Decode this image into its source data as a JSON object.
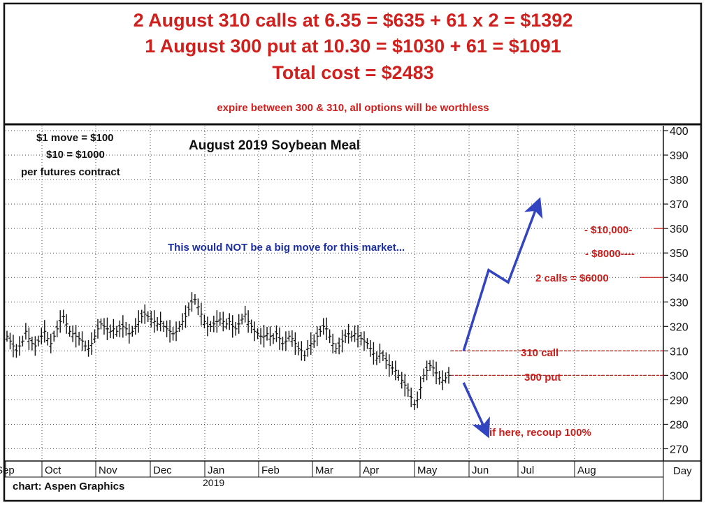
{
  "header": {
    "line1": "2 August 310 calls at 6.35 = $635 + 61 x 2 = $1392",
    "line2": "1 August 300 put at 10.30 = $1030 + 61 = $1091",
    "line3": "Total cost = $2483",
    "line4": "expire between 300 & 310, all options will be worthless"
  },
  "notes": {
    "move1": "$1 move = $100",
    "move2": "$10 = $1000",
    "move3": "per futures contract",
    "big_move": "This would NOT be a big move for this market...",
    "credit": "chart: Aspen Graphics",
    "year": "2019",
    "day": "Day"
  },
  "annotations": {
    "a10000": "$10,000",
    "a8000": "$8000",
    "a6000": "2 calls = $6000",
    "call310": "310 call",
    "put300": "300 put",
    "recoup": "if here, recoup 100%"
  },
  "colors": {
    "title_red": "#d0201d",
    "annotation_red": "#c8201d",
    "arrow_blue": "#3344c0",
    "text_blue": "#1a2ea0",
    "price_bars": "#111111"
  },
  "chart_data": {
    "type": "line",
    "title": "August 2019 Soybean Meal",
    "xlabel": "",
    "ylabel": "",
    "ylim": [
      265,
      402
    ],
    "y_ticks": [
      270,
      280,
      290,
      300,
      310,
      320,
      330,
      340,
      350,
      360,
      370,
      380,
      390,
      400
    ],
    "x_ticks": [
      "Sep",
      "Oct",
      "Nov",
      "Dec",
      "Jan",
      "Feb",
      "Mar",
      "Apr",
      "May",
      "Jun",
      "Jul",
      "Aug"
    ],
    "grid": true,
    "series": [
      {
        "values": [
          316,
          314,
          312,
          310,
          312,
          314,
          318,
          315,
          313,
          312,
          314,
          316,
          318,
          315,
          313,
          316,
          319,
          322,
          324,
          321,
          318,
          317,
          316,
          315,
          314,
          312,
          311,
          313,
          316,
          319,
          321,
          320,
          319,
          318,
          319,
          318,
          319,
          320,
          319,
          317,
          318,
          320,
          322,
          324,
          325,
          324,
          323,
          322,
          321,
          322,
          320,
          319,
          318,
          317,
          318,
          320,
          322,
          324,
          327,
          330,
          331,
          328,
          325,
          322,
          320,
          320,
          321,
          322,
          323,
          322,
          321,
          322,
          320,
          319,
          321,
          323,
          325,
          322,
          320,
          318,
          317,
          316,
          316,
          317,
          316,
          315,
          317,
          315,
          313,
          314,
          316,
          315,
          313,
          311,
          310,
          308,
          311,
          313,
          314,
          316,
          318,
          320,
          319,
          316,
          313,
          311,
          312,
          314,
          316,
          317,
          316,
          317,
          316,
          315,
          314,
          313,
          311,
          309,
          307,
          309,
          308,
          306,
          304,
          303,
          302,
          300,
          298,
          296,
          294,
          291,
          288,
          290,
          295,
          300,
          302,
          304,
          303,
          301,
          299,
          298,
          299,
          300
        ]
      }
    ],
    "projections": [
      {
        "x_month": [
          8.9,
          9.4,
          9.8,
          10.35
        ],
        "y": [
          310,
          343,
          338,
          370
        ]
      },
      {
        "x_month": [
          8.9,
          9.35
        ],
        "y": [
          297,
          277
        ]
      }
    ],
    "reference_lines": [
      {
        "label": "310 call",
        "y": 310
      },
      {
        "label": "300 put",
        "y": 300
      }
    ]
  }
}
